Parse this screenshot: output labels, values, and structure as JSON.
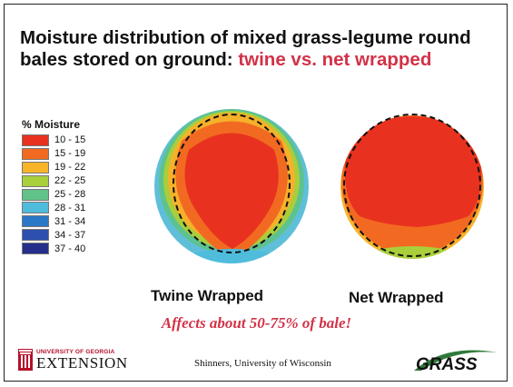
{
  "title": {
    "main": "Moisture distribution of mixed grass-legume round bales stored on ground: ",
    "accent": "twine vs. net wrapped"
  },
  "legend": {
    "title": "% Moisture",
    "items": [
      {
        "label": "10 - 15",
        "color": "#e8321f"
      },
      {
        "label": "15 - 19",
        "color": "#f26a21"
      },
      {
        "label": "19 - 22",
        "color": "#f7b42b"
      },
      {
        "label": "22 - 25",
        "color": "#a9cf3b"
      },
      {
        "label": "25 - 28",
        "color": "#62c38a"
      },
      {
        "label": "28 - 31",
        "color": "#4fbcdc"
      },
      {
        "label": "31 - 34",
        "color": "#2a78c8"
      },
      {
        "label": "34 - 37",
        "color": "#2c4fb0"
      },
      {
        "label": "37 - 40",
        "color": "#252f8a"
      }
    ]
  },
  "bales": [
    {
      "label": "Twine Wrapped"
    },
    {
      "label": "Net Wrapped"
    }
  ],
  "note": "Affects about 50-75% of bale!",
  "footer": {
    "institution_top": "UNIVERSITY OF GEORGIA",
    "institution_bottom": "EXTENSION",
    "credit": "Shinners, University of Wisconsin",
    "brand": "GRASS"
  }
}
